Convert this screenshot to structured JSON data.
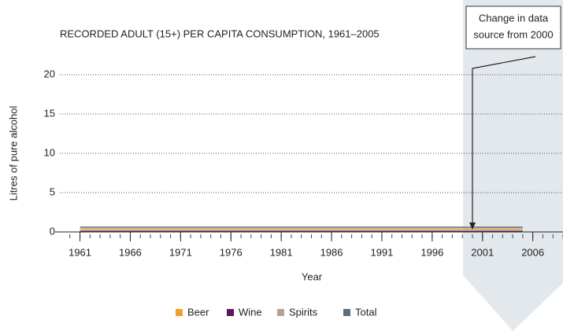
{
  "chart_data": {
    "type": "line",
    "title": "RECORDED ADULT (15+) PER CAPITA CONSUMPTION, 1961–2005",
    "y_label": "Litres of pure alcohol",
    "x_label": "Year",
    "x": [
      1961,
      1962,
      1963,
      1964,
      1965,
      1966,
      1967,
      1968,
      1969,
      1970,
      1971,
      1972,
      1973,
      1974,
      1975,
      1976,
      1977,
      1978,
      1979,
      1980,
      1981,
      1982,
      1983,
      1984,
      1985,
      1986,
      1987,
      1988,
      1989,
      1990,
      1991,
      1992,
      1993,
      1994,
      1995,
      1996,
      1997,
      1998,
      1999,
      2000,
      2001,
      2002,
      2003,
      2004,
      2005
    ],
    "series": [
      {
        "name": "Beer",
        "color": "#f0a030",
        "values": [
          0.4,
          0.4,
          0.4,
          0.4,
          0.4,
          0.4,
          0.4,
          0.4,
          0.4,
          0.4,
          0.4,
          0.4,
          0.4,
          0.4,
          0.4,
          0.4,
          0.4,
          0.4,
          0.4,
          0.4,
          0.4,
          0.4,
          0.4,
          0.4,
          0.4,
          0.4,
          0.4,
          0.4,
          0.4,
          0.4,
          0.4,
          0.4,
          0.4,
          0.4,
          0.4,
          0.4,
          0.4,
          0.4,
          0.4,
          0.4,
          0.4,
          0.4,
          0.4,
          0.4,
          0.4
        ]
      },
      {
        "name": "Wine",
        "color": "#5c1a5c",
        "values": [
          0.1,
          0.1,
          0.1,
          0.1,
          0.1,
          0.1,
          0.1,
          0.1,
          0.1,
          0.1,
          0.1,
          0.1,
          0.1,
          0.1,
          0.1,
          0.1,
          0.1,
          0.1,
          0.1,
          0.1,
          0.1,
          0.1,
          0.1,
          0.1,
          0.1,
          0.1,
          0.1,
          0.1,
          0.1,
          0.1,
          0.1,
          0.1,
          0.1,
          0.1,
          0.1,
          0.1,
          0.1,
          0.1,
          0.1,
          0.1,
          0.1,
          0.1,
          0.1,
          0.1,
          0.1
        ]
      },
      {
        "name": "Spirits",
        "color": "#b0a49a",
        "values": [
          0.2,
          0.2,
          0.2,
          0.2,
          0.2,
          0.2,
          0.2,
          0.2,
          0.2,
          0.2,
          0.2,
          0.2,
          0.2,
          0.2,
          0.2,
          0.2,
          0.2,
          0.2,
          0.2,
          0.2,
          0.2,
          0.2,
          0.2,
          0.2,
          0.2,
          0.2,
          0.2,
          0.2,
          0.2,
          0.2,
          0.2,
          0.2,
          0.2,
          0.2,
          0.2,
          0.2,
          0.2,
          0.2,
          0.2,
          0.2,
          0.2,
          0.2,
          0.2,
          0.2,
          0.2
        ]
      },
      {
        "name": "Total",
        "color": "#5a6e7a",
        "values": [
          0.6,
          0.6,
          0.6,
          0.6,
          0.6,
          0.6,
          0.6,
          0.6,
          0.6,
          0.6,
          0.6,
          0.6,
          0.6,
          0.6,
          0.6,
          0.6,
          0.6,
          0.6,
          0.6,
          0.6,
          0.6,
          0.6,
          0.6,
          0.6,
          0.6,
          0.6,
          0.6,
          0.6,
          0.6,
          0.6,
          0.6,
          0.6,
          0.6,
          0.6,
          0.6,
          0.6,
          0.6,
          0.6,
          0.6,
          0.6,
          0.6,
          0.6,
          0.6,
          0.6,
          0.6
        ]
      }
    ],
    "xlim": [
      1959,
      2009
    ],
    "xticks": [
      1961,
      1966,
      1971,
      1976,
      1981,
      1986,
      1991,
      1996,
      2001,
      2006
    ],
    "xminorticks": [
      1960,
      1961,
      1962,
      1963,
      1964,
      1965,
      1966,
      1967,
      1968,
      1969,
      1970,
      1971,
      1972,
      1973,
      1974,
      1975,
      1976,
      1977,
      1978,
      1979,
      1980,
      1981,
      1982,
      1983,
      1984,
      1985,
      1986,
      1987,
      1988,
      1989,
      1990,
      1991,
      1992,
      1993,
      1994,
      1995,
      1996,
      1997,
      1998,
      1999,
      2000,
      2001,
      2002,
      2003,
      2004,
      2005,
      2006,
      2007,
      2008,
      2009
    ],
    "ylim": [
      0,
      20
    ],
    "yticks": [
      0,
      5,
      10,
      15,
      20
    ],
    "grid": true,
    "legend": "bottom",
    "annotation": {
      "lines": [
        "Change in data",
        "source from 2000"
      ],
      "x": 2000
    }
  }
}
